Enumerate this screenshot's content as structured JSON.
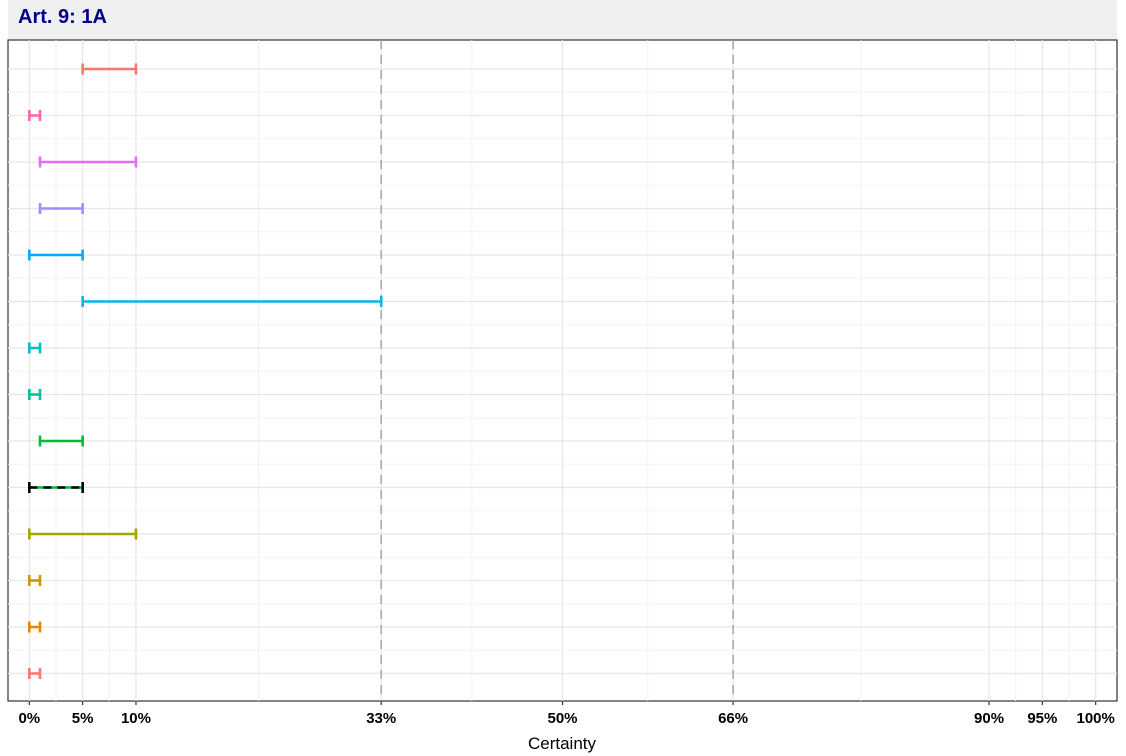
{
  "panel": {
    "title": "Art. 9: 1A"
  },
  "chart_data": {
    "type": "interval",
    "title": "Art. 9: 1A",
    "xlabel": "Certainty",
    "ylabel": "",
    "xlim": [
      -2,
      102
    ],
    "x_tick_values": [
      0,
      5,
      10,
      33,
      50,
      66,
      90,
      95,
      100
    ],
    "x_tick_labels": [
      "0%",
      "5%",
      "10%",
      "33%",
      "50%",
      "66%",
      "90%",
      "95%",
      "100%"
    ],
    "reference_lines": [
      33,
      66
    ],
    "grid": true,
    "legend": "none",
    "intervals": [
      {
        "low": 5,
        "high": 10,
        "color": "#F8766D"
      },
      {
        "low": 0,
        "high": 1,
        "color": "#FF66A8"
      },
      {
        "low": 1,
        "high": 10,
        "color": "#E76BF3"
      },
      {
        "low": 1,
        "high": 5,
        "color": "#A58AFF"
      },
      {
        "low": 0,
        "high": 5,
        "color": "#00A9FF"
      },
      {
        "low": 5,
        "high": 33,
        "color": "#00B8E7"
      },
      {
        "low": 0,
        "high": 1,
        "color": "#00BFC4"
      },
      {
        "low": 0,
        "high": 1,
        "color": "#00C19A"
      },
      {
        "low": 1,
        "high": 5,
        "color": "#00BA38"
      },
      {
        "low": 0,
        "high": 5,
        "color": "#000000",
        "dashed": true
      },
      {
        "low": 0,
        "high": 10,
        "color": "#A3A500"
      },
      {
        "low": 0,
        "high": 1,
        "color": "#C49A00"
      },
      {
        "low": 0,
        "high": 1,
        "color": "#E58700"
      },
      {
        "low": 0,
        "high": 1,
        "color": "#F8766D"
      }
    ]
  }
}
